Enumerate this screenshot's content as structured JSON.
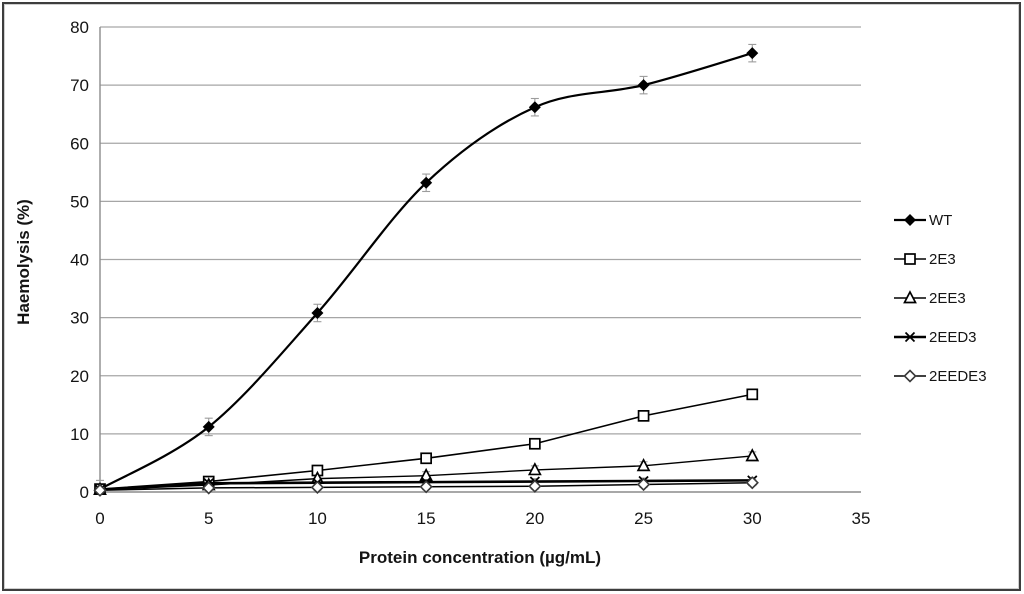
{
  "figure": {
    "background": "#ffffff",
    "border_color": "#3d3d3d"
  },
  "chart_data": {
    "type": "line",
    "title": "",
    "xlabel": "Protein concentration (µg/mL)",
    "ylabel": "Haemolysis (%)",
    "xlim": [
      0,
      35
    ],
    "ylim": [
      0,
      80
    ],
    "xticks": [
      0,
      5,
      10,
      15,
      20,
      25,
      30,
      35
    ],
    "yticks": [
      0,
      10,
      20,
      30,
      40,
      50,
      60,
      70,
      80
    ],
    "grid": "horizontal",
    "legend_position": "right",
    "x": [
      0,
      5,
      10,
      15,
      20,
      25,
      30
    ],
    "series": [
      {
        "name": "WT",
        "marker": "diamond-filled",
        "smooth": true,
        "line_width": 2.2,
        "error": 1.5,
        "values": [
          0.5,
          11.2,
          30.8,
          53.2,
          66.2,
          70.0,
          75.5
        ]
      },
      {
        "name": "2E3",
        "marker": "square-open",
        "smooth": false,
        "line_width": 1.6,
        "error": 0.8,
        "values": [
          0.5,
          1.8,
          3.7,
          5.8,
          8.3,
          13.1,
          16.8
        ]
      },
      {
        "name": "2EE3",
        "marker": "triangle-open",
        "smooth": false,
        "line_width": 1.4,
        "error": 0.7,
        "values": [
          0.4,
          1.2,
          2.3,
          2.8,
          3.8,
          4.5,
          6.2
        ]
      },
      {
        "name": "2EED3",
        "marker": "x",
        "smooth": false,
        "line_width": 2.6,
        "error": 0.5,
        "values": [
          0.4,
          1.5,
          1.6,
          1.7,
          1.8,
          1.9,
          2.0
        ]
      },
      {
        "name": "2EEDE3",
        "marker": "diamond-open",
        "smooth": false,
        "line_width": 1.5,
        "error": 0.5,
        "values": [
          0.3,
          0.7,
          0.8,
          0.9,
          1.0,
          1.3,
          1.6
        ]
      }
    ],
    "colors": {
      "line": "#000000",
      "grid": "#a6a6a6",
      "axis": "#8c8c8c",
      "error_bar": "#9c9c9c",
      "marker_fill": "#ffffff",
      "tick_label": "#141414"
    }
  }
}
